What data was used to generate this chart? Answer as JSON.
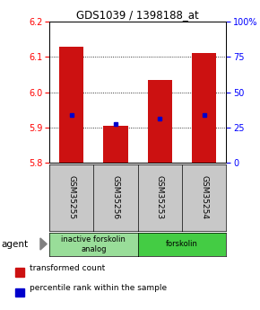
{
  "title": "GDS1039 / 1398188_at",
  "samples": [
    "GSM35255",
    "GSM35256",
    "GSM35253",
    "GSM35254"
  ],
  "bar_bottoms": [
    5.8,
    5.8,
    5.8,
    5.8
  ],
  "bar_tops": [
    6.13,
    5.905,
    6.035,
    6.11
  ],
  "blue_dots": [
    5.935,
    5.91,
    5.925,
    5.935
  ],
  "ylim": [
    5.8,
    6.2
  ],
  "yticks_left": [
    5.8,
    5.9,
    6.0,
    6.1,
    6.2
  ],
  "yticks_right_vals": [
    0,
    25,
    50,
    75,
    100
  ],
  "yticks_right_labels": [
    "0",
    "25",
    "50",
    "75",
    "100%"
  ],
  "bar_color": "#cc1111",
  "dot_color": "#0000cc",
  "bar_width": 0.55,
  "groups": [
    {
      "label": "inactive forskolin\nanalog",
      "samples": [
        0,
        1
      ],
      "color": "#99dd99"
    },
    {
      "label": "forskolin",
      "samples": [
        2,
        3
      ],
      "color": "#44cc44"
    }
  ],
  "agent_label": "agent",
  "legend_items": [
    {
      "color": "#cc1111",
      "label": "transformed count"
    },
    {
      "color": "#0000cc",
      "label": "percentile rank within the sample"
    }
  ],
  "sample_box_color": "#c8c8c8",
  "fig_bg": "#ffffff"
}
